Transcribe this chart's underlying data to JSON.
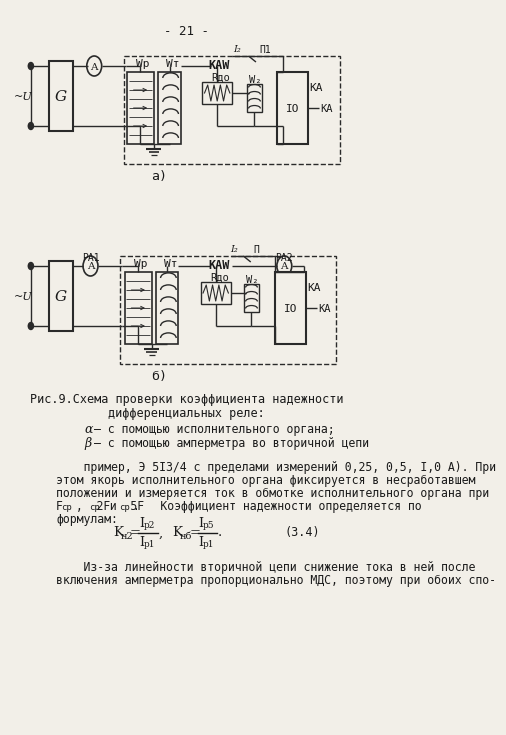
{
  "page_number": "- 21 -",
  "bg_color": "#f2efe8",
  "line_color": "#2a2a2a",
  "text_color": "#1a1a1a",
  "fig_caption_line1": "Рис.9.Схема проверки коэффициента надежности",
  "fig_caption_line2": "дифференциальных реле:",
  "label_a": "а)",
  "label_b": "б)",
  "caption_a": "α  – с помощью исполнительного органа;",
  "caption_b": "β  – с помощью амперметра во вторичной цепи",
  "body_lines": [
    "    пример, Э 5I3/4 с пределами измерений 0,25, 0,5, I,0 А). При",
    "этом якорь исполнительного органа фиксируется в несработавшем",
    "положении и измеряется ток в обмотке исполнительного органа при",
    "формулам:"
  ],
  "bottom_lines": [
    "    Из-за линейности вторичной цепи снижение тока в ней после",
    "включения амперметра пропорционально МДС, поэтому при обоих спо-"
  ]
}
